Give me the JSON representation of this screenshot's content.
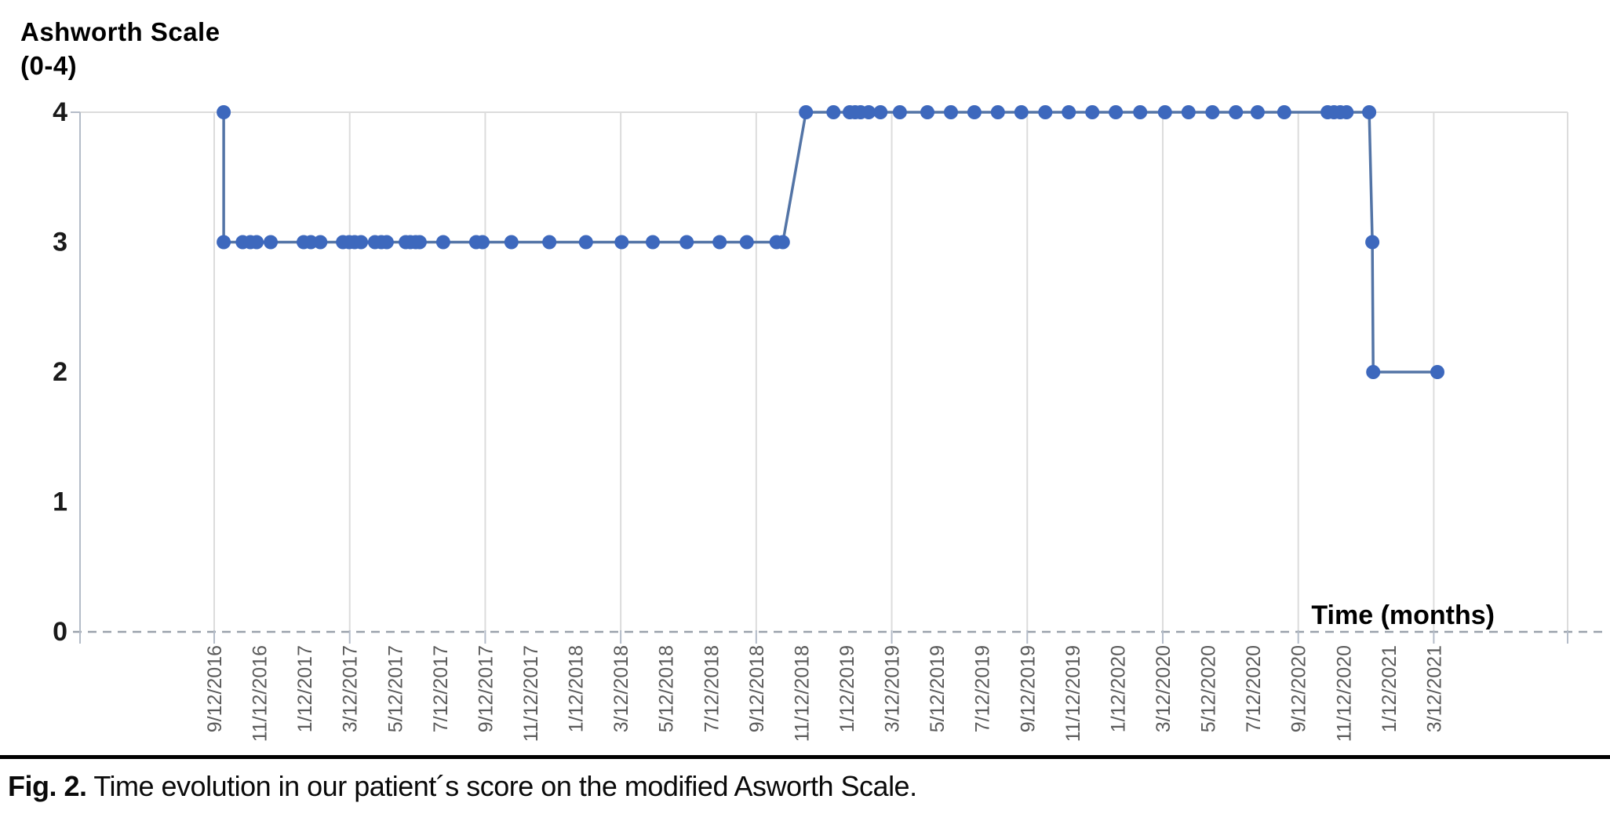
{
  "title": {
    "line1": "Ashworth Scale",
    "line2": "(0-4)"
  },
  "x_axis_title": "Time (months)",
  "caption": {
    "label": "Fig. 2.",
    "text": " Time evolution in our patient´s score on the modified Asworth Scale."
  },
  "colors": {
    "point": "#3d68bd",
    "line": "#5374a6",
    "grid": "#dcdcdc",
    "axis": "#b4bcc8",
    "zero_line": "#9aa1ab",
    "tick_label": "#5a5a5a",
    "y_label": "#1a1a1a",
    "text": "#000000"
  },
  "chart_data": {
    "type": "line",
    "title": "Ashworth Scale (0-4)",
    "xlabel": "Time (months)",
    "ylabel": "Ashworth Scale (0-4)",
    "ylim": [
      0,
      4
    ],
    "y_ticks": [
      4,
      3,
      2,
      1,
      0
    ],
    "grid": "vertical gridlines every 3rd tick (every 6 months), horizontal line at y=4, dashed baseline at y=0",
    "legend": "none",
    "x_unit_note": "x values are positions in 2-month tick units measured from the 9/12/2016 tick (0 = 9/12/2016, 27 = 3/12/2021)",
    "gridline_every_n_labels": 3,
    "x_tick_labels": [
      "9/12/2016",
      "11/12/2016",
      "1/12/2017",
      "3/12/2017",
      "5/12/2017",
      "7/12/2017",
      "9/12/2017",
      "11/12/2017",
      "1/12/2018",
      "3/12/2018",
      "5/12/2018",
      "7/12/2018",
      "9/12/2018",
      "11/12/2018",
      "1/12/2019",
      "3/12/2019",
      "5/12/2019",
      "7/12/2019",
      "9/12/2019",
      "11/12/2019",
      "1/12/2020",
      "3/12/2020",
      "5/12/2020",
      "7/12/2020",
      "9/12/2020",
      "11/12/2020",
      "1/12/2021",
      "3/12/2021"
    ],
    "points": [
      [
        0.21,
        4
      ],
      [
        0.21,
        3
      ],
      [
        0.63,
        3
      ],
      [
        0.8,
        3
      ],
      [
        0.94,
        3
      ],
      [
        1.25,
        3
      ],
      [
        1.98,
        3
      ],
      [
        2.14,
        3
      ],
      [
        2.35,
        3
      ],
      [
        2.85,
        3
      ],
      [
        2.99,
        3
      ],
      [
        3.11,
        3
      ],
      [
        3.25,
        3
      ],
      [
        3.56,
        3
      ],
      [
        3.7,
        3
      ],
      [
        3.82,
        3
      ],
      [
        4.24,
        3
      ],
      [
        4.34,
        3
      ],
      [
        4.46,
        3
      ],
      [
        4.55,
        3
      ],
      [
        5.07,
        3
      ],
      [
        5.8,
        3
      ],
      [
        5.94,
        3
      ],
      [
        6.58,
        3
      ],
      [
        7.42,
        3
      ],
      [
        8.23,
        3
      ],
      [
        9.02,
        3
      ],
      [
        9.71,
        3
      ],
      [
        10.46,
        3
      ],
      [
        11.19,
        3
      ],
      [
        11.79,
        3
      ],
      [
        12.45,
        3
      ],
      [
        12.59,
        3
      ],
      [
        13.1,
        4
      ],
      [
        13.71,
        4
      ],
      [
        14.07,
        4
      ],
      [
        14.19,
        4
      ],
      [
        14.31,
        4
      ],
      [
        14.49,
        4
      ],
      [
        14.75,
        4
      ],
      [
        15.18,
        4
      ],
      [
        15.79,
        4
      ],
      [
        16.31,
        4
      ],
      [
        16.83,
        4
      ],
      [
        17.35,
        4
      ],
      [
        17.87,
        4
      ],
      [
        18.4,
        4
      ],
      [
        18.92,
        4
      ],
      [
        19.44,
        4
      ],
      [
        19.96,
        4
      ],
      [
        20.5,
        4
      ],
      [
        21.05,
        4
      ],
      [
        21.57,
        4
      ],
      [
        22.1,
        4
      ],
      [
        22.62,
        4
      ],
      [
        23.1,
        4
      ],
      [
        23.69,
        4
      ],
      [
        24.65,
        4
      ],
      [
        24.79,
        4
      ],
      [
        24.93,
        4
      ],
      [
        25.07,
        4
      ],
      [
        25.57,
        4
      ],
      [
        25.64,
        3
      ],
      [
        25.66,
        2
      ],
      [
        27.08,
        2
      ]
    ]
  }
}
